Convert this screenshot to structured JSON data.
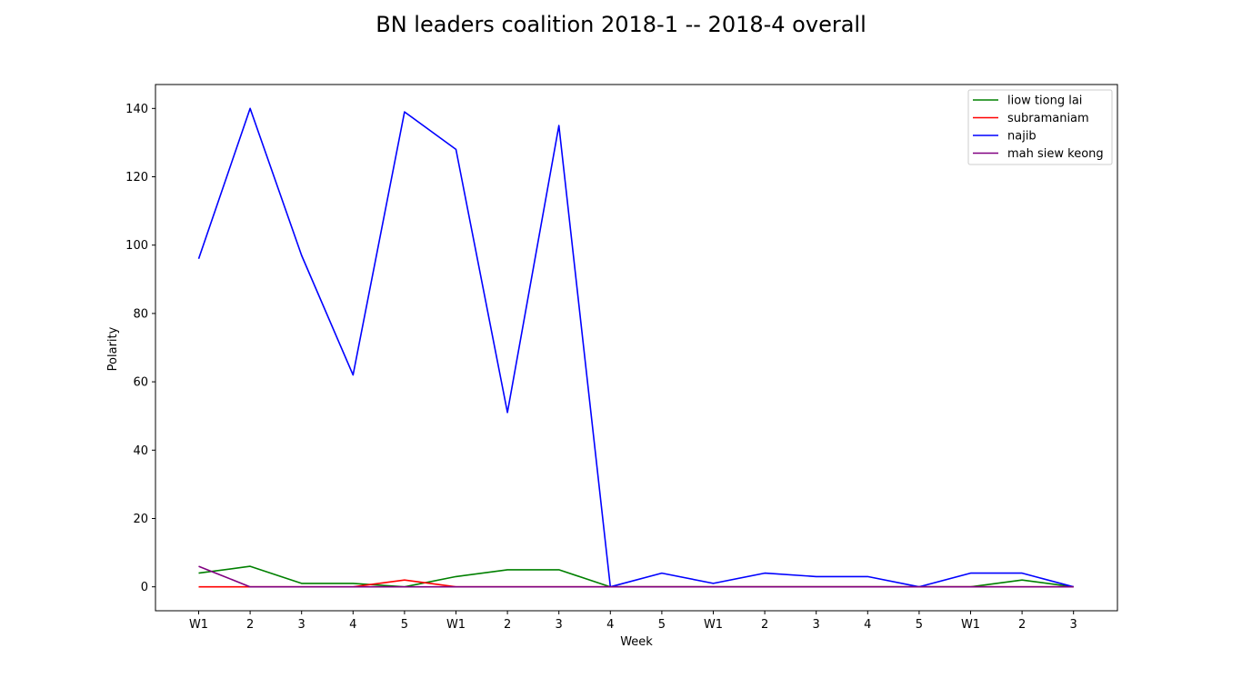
{
  "chart_data": {
    "type": "line",
    "title": "BN leaders coalition 2018-1 -- 2018-4 overall",
    "xlabel": "Week",
    "ylabel": "Polarity",
    "categories": [
      "W1",
      "2",
      "3",
      "4",
      "5",
      "W1",
      "2",
      "3",
      "4",
      "5",
      "W1",
      "2",
      "3",
      "4",
      "5",
      "W1",
      "2",
      "3"
    ],
    "yticks": [
      0,
      20,
      40,
      60,
      80,
      100,
      120,
      140
    ],
    "ylim": [
      -7,
      147
    ],
    "grid": false,
    "legend_position": "top-right",
    "series": [
      {
        "name": "liow tiong lai",
        "color": "#008000",
        "values": [
          4,
          6,
          1,
          1,
          0,
          3,
          5,
          5,
          0,
          0,
          0,
          0,
          0,
          0,
          0,
          0,
          2,
          0
        ]
      },
      {
        "name": "subramaniam",
        "color": "#ff0000",
        "values": [
          0,
          0,
          0,
          0,
          2,
          0,
          0,
          0,
          0,
          0,
          0,
          0,
          0,
          0,
          0,
          0,
          0,
          0
        ]
      },
      {
        "name": "najib",
        "color": "#0000ff",
        "values": [
          96,
          140,
          97,
          62,
          139,
          128,
          51,
          135,
          0,
          4,
          1,
          4,
          3,
          3,
          0,
          4,
          4,
          0
        ]
      },
      {
        "name": "mah siew keong",
        "color": "#800080",
        "values": [
          6,
          0,
          0,
          0,
          0,
          0,
          0,
          0,
          0,
          0,
          0,
          0,
          0,
          0,
          0,
          0,
          0,
          0
        ]
      }
    ]
  }
}
